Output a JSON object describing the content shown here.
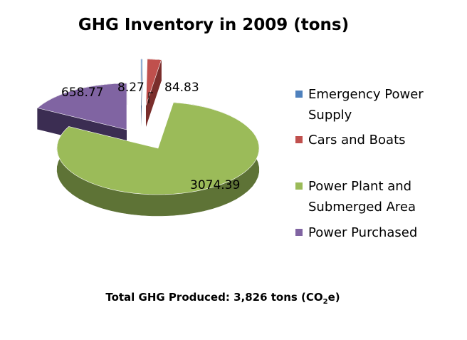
{
  "chart_data": {
    "type": "pie",
    "title": "GHG Inventory in 2009 (tons)",
    "categories": [
      "Emergency Power Supply",
      "Cars and Boats",
      "Power Plant and Submerged Area",
      "Power Purchased"
    ],
    "values": [
      8.27,
      84.83,
      3074.39,
      658.77
    ],
    "data_labels": [
      "8.27",
      "84.83",
      "3074.39",
      "658.77"
    ],
    "colors": [
      "#4F81BD",
      "#C0504D",
      "#9BBB59",
      "#8064A2"
    ],
    "dark_colors": [
      "#2E4D75",
      "#7A2E2C",
      "#5E7336",
      "#3B2D52"
    ],
    "exploded": true,
    "legend_position": "right"
  },
  "legend": {
    "items": [
      {
        "line1": "Emergency Power",
        "line2": "Supply"
      },
      {
        "line1": "Cars and Boats",
        "line2": ""
      },
      {
        "line1": "Power Plant and",
        "line2": "Submerged Area"
      },
      {
        "line1": "Power Purchased",
        "line2": ""
      }
    ]
  },
  "footer": {
    "prefix": "Total GHG Produced: 3,826 tons (CO",
    "sub": "2",
    "suffix": "e)"
  }
}
